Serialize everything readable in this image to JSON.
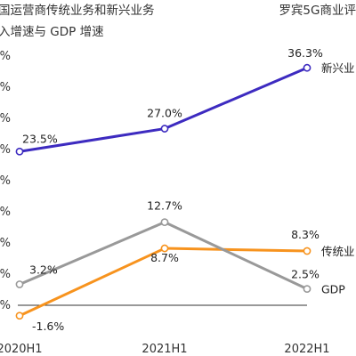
{
  "header": {
    "title_lines": [
      "国运营商传统业务和新兴业务",
      "入增速与 GDP 增速"
    ],
    "source": "罗宾5G商业评"
  },
  "colors": {
    "new_business": "#3d2bc0",
    "traditional": "#f7931e",
    "gdp": "#999999",
    "zero_line": "#333333"
  },
  "chart_data": {
    "type": "line",
    "categories": [
      "2020H1",
      "2021H1",
      "2022H1"
    ],
    "y_tick_labels": [
      "%",
      "%",
      "%",
      "%",
      "%",
      "%",
      "%",
      "%",
      "%"
    ],
    "series": [
      {
        "key": "new_business",
        "name": "新兴业",
        "values": [
          23.5,
          27.0,
          36.3
        ],
        "labels": [
          "23.5%",
          "27.0%",
          "36.3%"
        ]
      },
      {
        "key": "traditional",
        "name": "传统业",
        "values": [
          -1.6,
          8.7,
          8.3
        ],
        "labels": [
          "-1.6%",
          "8.7%",
          "8.3%"
        ]
      },
      {
        "key": "gdp",
        "name": "GDP",
        "values": [
          3.2,
          12.7,
          2.5
        ],
        "labels": [
          "3.2%",
          "12.7%",
          "2.5%"
        ]
      }
    ]
  }
}
